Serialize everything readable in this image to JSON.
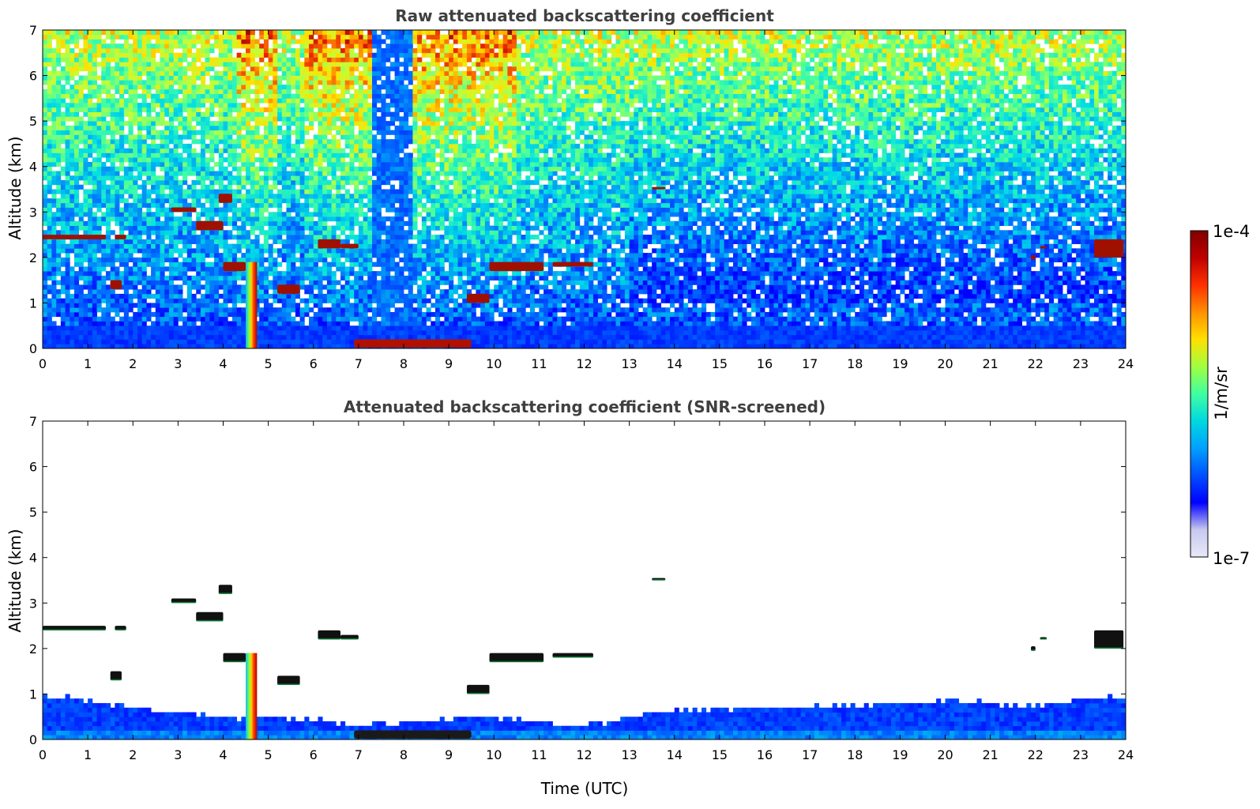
{
  "chart_data": [
    {
      "type": "heatmap",
      "title": "Raw attenuated backscattering coefficient",
      "xlabel": "",
      "ylabel": "Altitude (km)",
      "xlim": [
        0,
        24
      ],
      "ylim": [
        0,
        7
      ],
      "xticks": [
        "0",
        "1",
        "2",
        "3",
        "4",
        "5",
        "6",
        "7",
        "8",
        "9",
        "10",
        "11",
        "12",
        "13",
        "14",
        "15",
        "16",
        "17",
        "18",
        "19",
        "20",
        "21",
        "22",
        "23",
        "24"
      ],
      "yticks": [
        "0",
        "1",
        "2",
        "3",
        "4",
        "5",
        "6",
        "7"
      ],
      "screened": false,
      "features": [
        {
          "kind": "cloud",
          "t": [
            0.0,
            1.4
          ],
          "alt": [
            2.4,
            2.5
          ]
        },
        {
          "kind": "cloud",
          "t": [
            1.6,
            1.85
          ],
          "alt": [
            2.4,
            2.5
          ]
        },
        {
          "kind": "cloud",
          "t": [
            1.5,
            1.75
          ],
          "alt": [
            1.3,
            1.5
          ]
        },
        {
          "kind": "cloud",
          "t": [
            2.85,
            3.4
          ],
          "alt": [
            3.0,
            3.1
          ]
        },
        {
          "kind": "cloud",
          "t": [
            3.4,
            4.0
          ],
          "alt": [
            2.6,
            2.8
          ]
        },
        {
          "kind": "cloud",
          "t": [
            3.9,
            4.2
          ],
          "alt": [
            3.2,
            3.4
          ]
        },
        {
          "kind": "cloud",
          "t": [
            4.0,
            4.5
          ],
          "alt": [
            1.7,
            1.9
          ]
        },
        {
          "kind": "cloud",
          "t": [
            5.2,
            5.7
          ],
          "alt": [
            1.2,
            1.4
          ]
        },
        {
          "kind": "cloud",
          "t": [
            6.1,
            6.6
          ],
          "alt": [
            2.2,
            2.4
          ]
        },
        {
          "kind": "cloud",
          "t": [
            6.6,
            7.0
          ],
          "alt": [
            2.2,
            2.3
          ]
        },
        {
          "kind": "precip",
          "t": [
            4.5,
            4.75
          ],
          "alt": [
            0.0,
            1.9
          ]
        },
        {
          "kind": "fog",
          "t": [
            6.9,
            9.5
          ],
          "alt": [
            0.02,
            0.2
          ]
        },
        {
          "kind": "cloud",
          "t": [
            9.4,
            9.9
          ],
          "alt": [
            1.0,
            1.2
          ]
        },
        {
          "kind": "cloud",
          "t": [
            9.9,
            11.1
          ],
          "alt": [
            1.7,
            1.9
          ]
        },
        {
          "kind": "cloud",
          "t": [
            11.3,
            12.2
          ],
          "alt": [
            1.8,
            1.9
          ]
        },
        {
          "kind": "cloud",
          "t": [
            13.5,
            13.8
          ],
          "alt": [
            3.5,
            3.55
          ]
        },
        {
          "kind": "cloud",
          "t": [
            21.9,
            22.0
          ],
          "alt": [
            1.95,
            2.05
          ]
        },
        {
          "kind": "cloud",
          "t": [
            22.1,
            22.25
          ],
          "alt": [
            2.2,
            2.25
          ]
        },
        {
          "kind": "cloud",
          "t": [
            23.3,
            23.95
          ],
          "alt": [
            2.0,
            2.4
          ]
        }
      ]
    },
    {
      "type": "heatmap",
      "title": "Attenuated backscattering coefficient (SNR-screened)",
      "xlabel": "Time (UTC)",
      "ylabel": "Altitude (km)",
      "xlim": [
        0,
        24
      ],
      "ylim": [
        0,
        7
      ],
      "xticks": [
        "0",
        "1",
        "2",
        "3",
        "4",
        "5",
        "6",
        "7",
        "8",
        "9",
        "10",
        "11",
        "12",
        "13",
        "14",
        "15",
        "16",
        "17",
        "18",
        "19",
        "20",
        "21",
        "22",
        "23",
        "24"
      ],
      "yticks": [
        "0",
        "1",
        "2",
        "3",
        "4",
        "5",
        "6",
        "7"
      ],
      "screened": true,
      "boundary_layer_top_km": [
        {
          "t": 0,
          "h": 1.0
        },
        {
          "t": 2,
          "h": 0.7
        },
        {
          "t": 4,
          "h": 0.5
        },
        {
          "t": 6,
          "h": 0.45
        },
        {
          "t": 7,
          "h": 0.3
        },
        {
          "t": 9.5,
          "h": 0.5
        },
        {
          "t": 12,
          "h": 0.3
        },
        {
          "t": 14,
          "h": 0.65
        },
        {
          "t": 18,
          "h": 0.75
        },
        {
          "t": 20,
          "h": 0.85
        },
        {
          "t": 22,
          "h": 0.75
        },
        {
          "t": 24,
          "h": 0.95
        }
      ]
    }
  ],
  "colorbar": {
    "label": "1/m/sr",
    "max_label": "1e-4",
    "min_label": "1e-7",
    "colors": [
      "#e8e8f8",
      "#c8c8f0",
      "#0000ff",
      "#0050ff",
      "#00a0ff",
      "#00d8e0",
      "#40ffa0",
      "#a0ff40",
      "#ffe000",
      "#ff9000",
      "#ff3000",
      "#c00000",
      "#7f0000"
    ]
  }
}
